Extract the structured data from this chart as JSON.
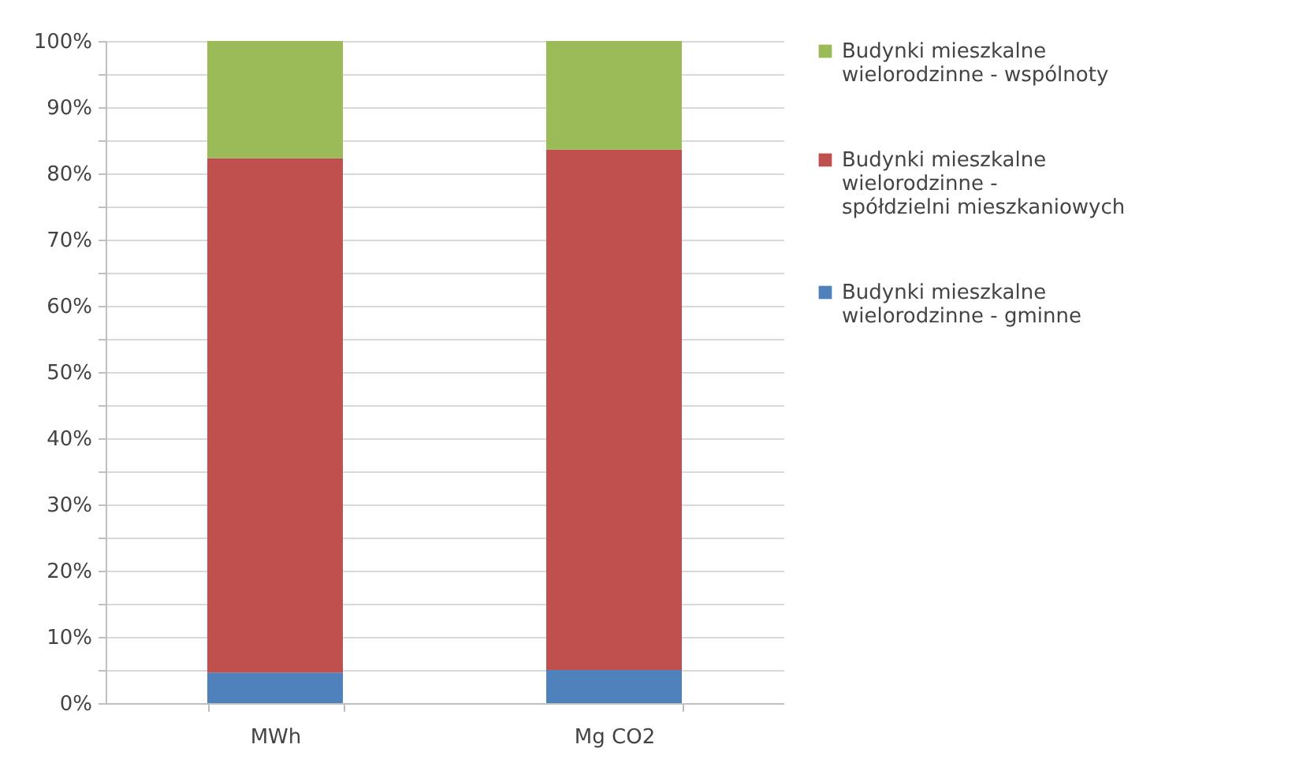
{
  "chart_data": {
    "type": "bar",
    "stacked": true,
    "categories": [
      "MWh",
      "Mg CO2"
    ],
    "series": [
      {
        "name": "Budynki mieszkalne wielorodzinne - gminne",
        "color": "#4f81bd",
        "values": [
          4.6,
          5.0
        ]
      },
      {
        "name": "Budynki mieszkalne wielorodzinne - spółdzielni mieszkaniowych",
        "color": "#c0504d",
        "values": [
          77.7,
          78.6
        ]
      },
      {
        "name": "Budynki mieszkalne wielorodzinne - wspólnoty",
        "color": "#9bbb59",
        "values": [
          17.7,
          16.4
        ]
      }
    ],
    "ylim": [
      0,
      100
    ],
    "yticks": [
      {
        "value": 0,
        "label": "0%"
      },
      {
        "value": 5,
        "label": null
      },
      {
        "value": 10,
        "label": "10%"
      },
      {
        "value": 15,
        "label": null
      },
      {
        "value": 20,
        "label": "20%"
      },
      {
        "value": 25,
        "label": null
      },
      {
        "value": 30,
        "label": "30%"
      },
      {
        "value": 35,
        "label": null
      },
      {
        "value": 40,
        "label": "40%"
      },
      {
        "value": 45,
        "label": null
      },
      {
        "value": 50,
        "label": "50%"
      },
      {
        "value": 55,
        "label": null
      },
      {
        "value": 60,
        "label": "60%"
      },
      {
        "value": 65,
        "label": null
      },
      {
        "value": 70,
        "label": "70%"
      },
      {
        "value": 75,
        "label": null
      },
      {
        "value": 80,
        "label": "80%"
      },
      {
        "value": 85,
        "label": null
      },
      {
        "value": 90,
        "label": "90%"
      },
      {
        "value": 95,
        "label": null
      },
      {
        "value": 100,
        "label": "100%"
      }
    ],
    "grid": "y",
    "legend": "right"
  }
}
